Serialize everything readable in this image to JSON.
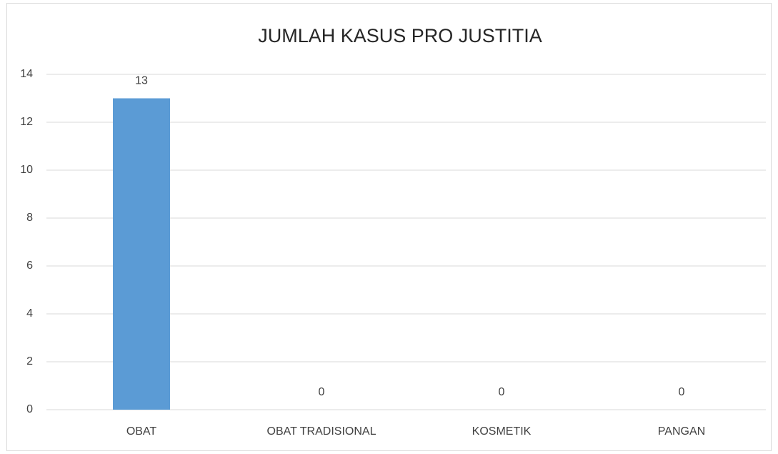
{
  "chart_data": {
    "type": "bar",
    "title": "JUMLAH KASUS PRO JUSTITIA",
    "categories": [
      "OBAT",
      "OBAT TRADISIONAL",
      "KOSMETIK",
      "PANGAN"
    ],
    "values": [
      13,
      0,
      0,
      0
    ],
    "color": "#5b9bd5",
    "ylim": [
      0,
      14
    ],
    "yticks": [
      0,
      2,
      4,
      6,
      8,
      10,
      12,
      14
    ],
    "grid": true
  }
}
